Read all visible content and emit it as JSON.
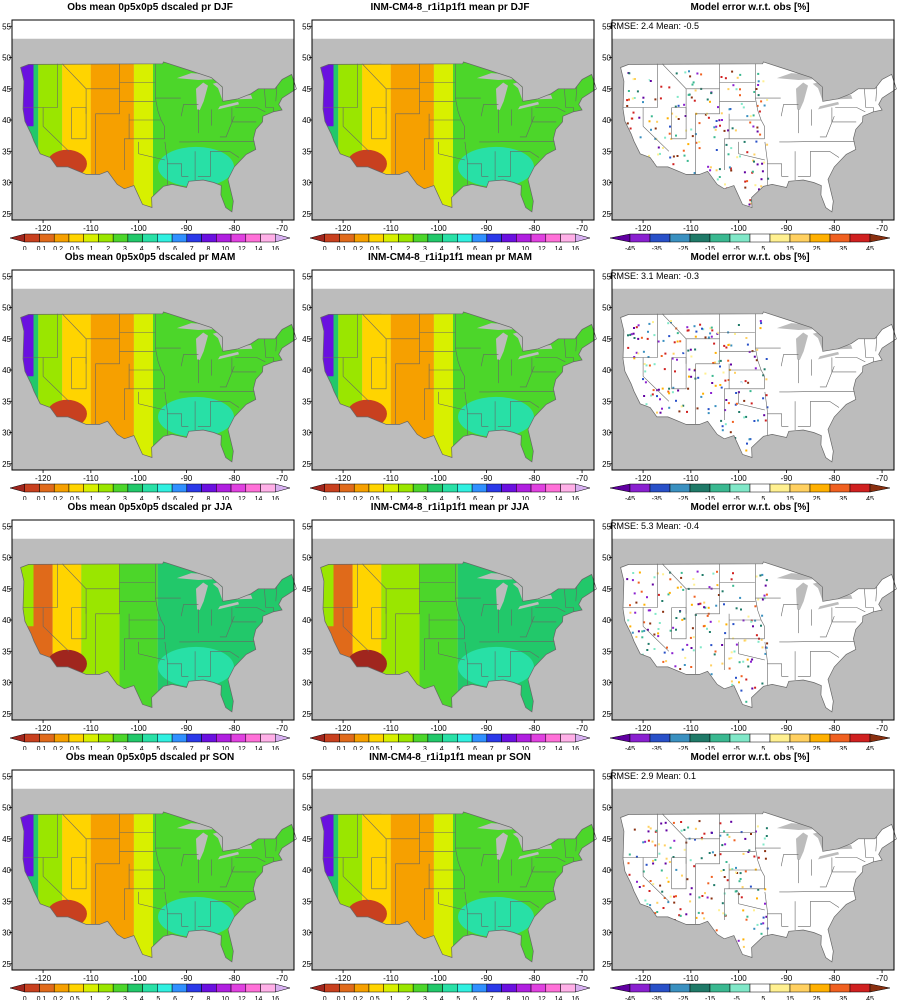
{
  "figure": {
    "rows": [
      {
        "season": "DJF",
        "obs_title": "Obs mean 0p5x0p5 dscaled pr DJF",
        "model_title": "INM-CM4-8_r1i1p1f1 mean pr DJF",
        "error_title": "Model error w.r.t. obs [%]",
        "error_stats": "RMSE: 2.4  Mean: -0.5"
      },
      {
        "season": "MAM",
        "obs_title": "Obs mean 0p5x0p5 dscaled pr MAM",
        "model_title": "INM-CM4-8_r1i1p1f1 mean pr MAM",
        "error_title": "Model error w.r.t. obs [%]",
        "error_stats": "RMSE: 3.1  Mean: -0.3"
      },
      {
        "season": "JJA",
        "obs_title": "Obs mean 0p5x0p5 dscaled pr JJA",
        "model_title": "INM-CM4-8_r1i1p1f1 mean pr JJA",
        "error_title": "Model error w.r.t. obs [%]",
        "error_stats": "RMSE: 5.3  Mean: -0.4"
      },
      {
        "season": "SON",
        "obs_title": "Obs mean 0p5x0p5 dscaled pr SON",
        "model_title": "INM-CM4-8_r1i1p1f1 mean pr SON",
        "error_title": "Model error w.r.t. obs [%]",
        "error_stats": "RMSE: 2.9  Mean: 0.1"
      }
    ],
    "lat_ticks": [
      "25",
      "30",
      "35",
      "40",
      "45",
      "50",
      "55"
    ],
    "lon_ticks": [
      "-120",
      "-110",
      "-100",
      "-90",
      "-80",
      "-70"
    ],
    "precip_colorbar": {
      "labels": [
        "0",
        "0.1",
        "0.2",
        "0.5",
        "1",
        "2",
        "3",
        "4",
        "5",
        "6",
        "7",
        "8",
        "10",
        "12",
        "14",
        "16"
      ],
      "colors": [
        "#a0261e",
        "#c8401f",
        "#e06a1a",
        "#f6a000",
        "#ffd400",
        "#d8f000",
        "#9ae600",
        "#4cd62a",
        "#22c86a",
        "#28e0a6",
        "#30f0e0",
        "#3090ff",
        "#2a38e8",
        "#6a10e0",
        "#b020e0",
        "#e040e0",
        "#ff70d8",
        "#ffb0e8",
        "#d8b0f0"
      ]
    },
    "error_colorbar": {
      "labels": [
        "-45",
        "-35",
        "-25",
        "-15",
        "-5",
        "5",
        "15",
        "25",
        "35",
        "45"
      ],
      "colors": [
        "#6000a0",
        "#8a20d0",
        "#2850c8",
        "#3a90c0",
        "#1f7a68",
        "#3ab890",
        "#80e8c8",
        "#ffffff",
        "#fff090",
        "#ffd060",
        "#ffb000",
        "#f06020",
        "#d02020",
        "#8a3010"
      ]
    },
    "colors": {
      "land_mask": "#bcbcbc",
      "error_background": "#f4fffb",
      "boundaries": "#666666"
    }
  }
}
